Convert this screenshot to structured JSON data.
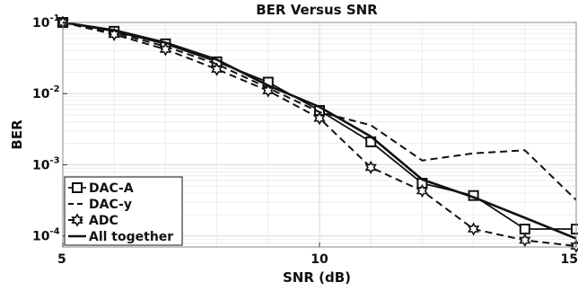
{
  "chart_data": {
    "type": "line",
    "title": "BER Versus SNR",
    "xlabel": "SNR (dB)",
    "ylabel": "BER",
    "xlim": [
      5,
      15
    ],
    "ylim": [
      7e-05,
      0.1
    ],
    "y_scale": "log",
    "grid": true,
    "legend_position": "bottom-left",
    "x_ticks": [
      {
        "value": 5,
        "label": "5"
      },
      {
        "value": 10,
        "label": "10"
      },
      {
        "value": 15,
        "label": "15"
      }
    ],
    "y_ticks": [
      {
        "value": 0.1,
        "base": "10",
        "exp": "-1"
      },
      {
        "value": 0.01,
        "base": "10",
        "exp": "-2"
      },
      {
        "value": 0.001,
        "base": "10",
        "exp": "-3"
      },
      {
        "value": 0.0001,
        "base": "10",
        "exp": "-4"
      }
    ],
    "series": [
      {
        "name": "DAC-A",
        "style": "solid",
        "marker": "square",
        "x": [
          5,
          6,
          7,
          8,
          9,
          10,
          11,
          12,
          13,
          14,
          15
        ],
        "y": [
          0.1,
          0.075,
          0.05,
          0.028,
          0.0145,
          0.0058,
          0.0021,
          0.00055,
          0.00037,
          0.000125,
          0.000125
        ]
      },
      {
        "name": "DAC-y",
        "style": "dashed",
        "marker": "none",
        "x": [
          5,
          6,
          7,
          8,
          9,
          10,
          11,
          12,
          13,
          14,
          15
        ],
        "y": [
          0.1,
          0.072,
          0.046,
          0.026,
          0.012,
          0.0055,
          0.0036,
          0.00115,
          0.00145,
          0.0016,
          0.00032
        ]
      },
      {
        "name": "ADC",
        "style": "dashed",
        "marker": "hexagram",
        "x": [
          5,
          6,
          7,
          8,
          9,
          10,
          11,
          12,
          13,
          14,
          15
        ],
        "y": [
          0.1,
          0.068,
          0.042,
          0.022,
          0.011,
          0.0045,
          0.00092,
          0.00043,
          0.000125,
          8.7e-05,
          7.2e-05
        ]
      },
      {
        "name": "All together",
        "style": "solid-thick",
        "marker": "none",
        "x": [
          5,
          6,
          7,
          8,
          9,
          10,
          11,
          12,
          13,
          14,
          15
        ],
        "y": [
          0.1,
          0.078,
          0.052,
          0.03,
          0.013,
          0.0065,
          0.0025,
          0.00062,
          0.00035,
          0.00018,
          9.2e-05
        ]
      }
    ],
    "colors": {
      "background": "#ffffff",
      "line": "#111111",
      "grid": "#d9d9d9",
      "minor_grid": "#ececec"
    }
  }
}
